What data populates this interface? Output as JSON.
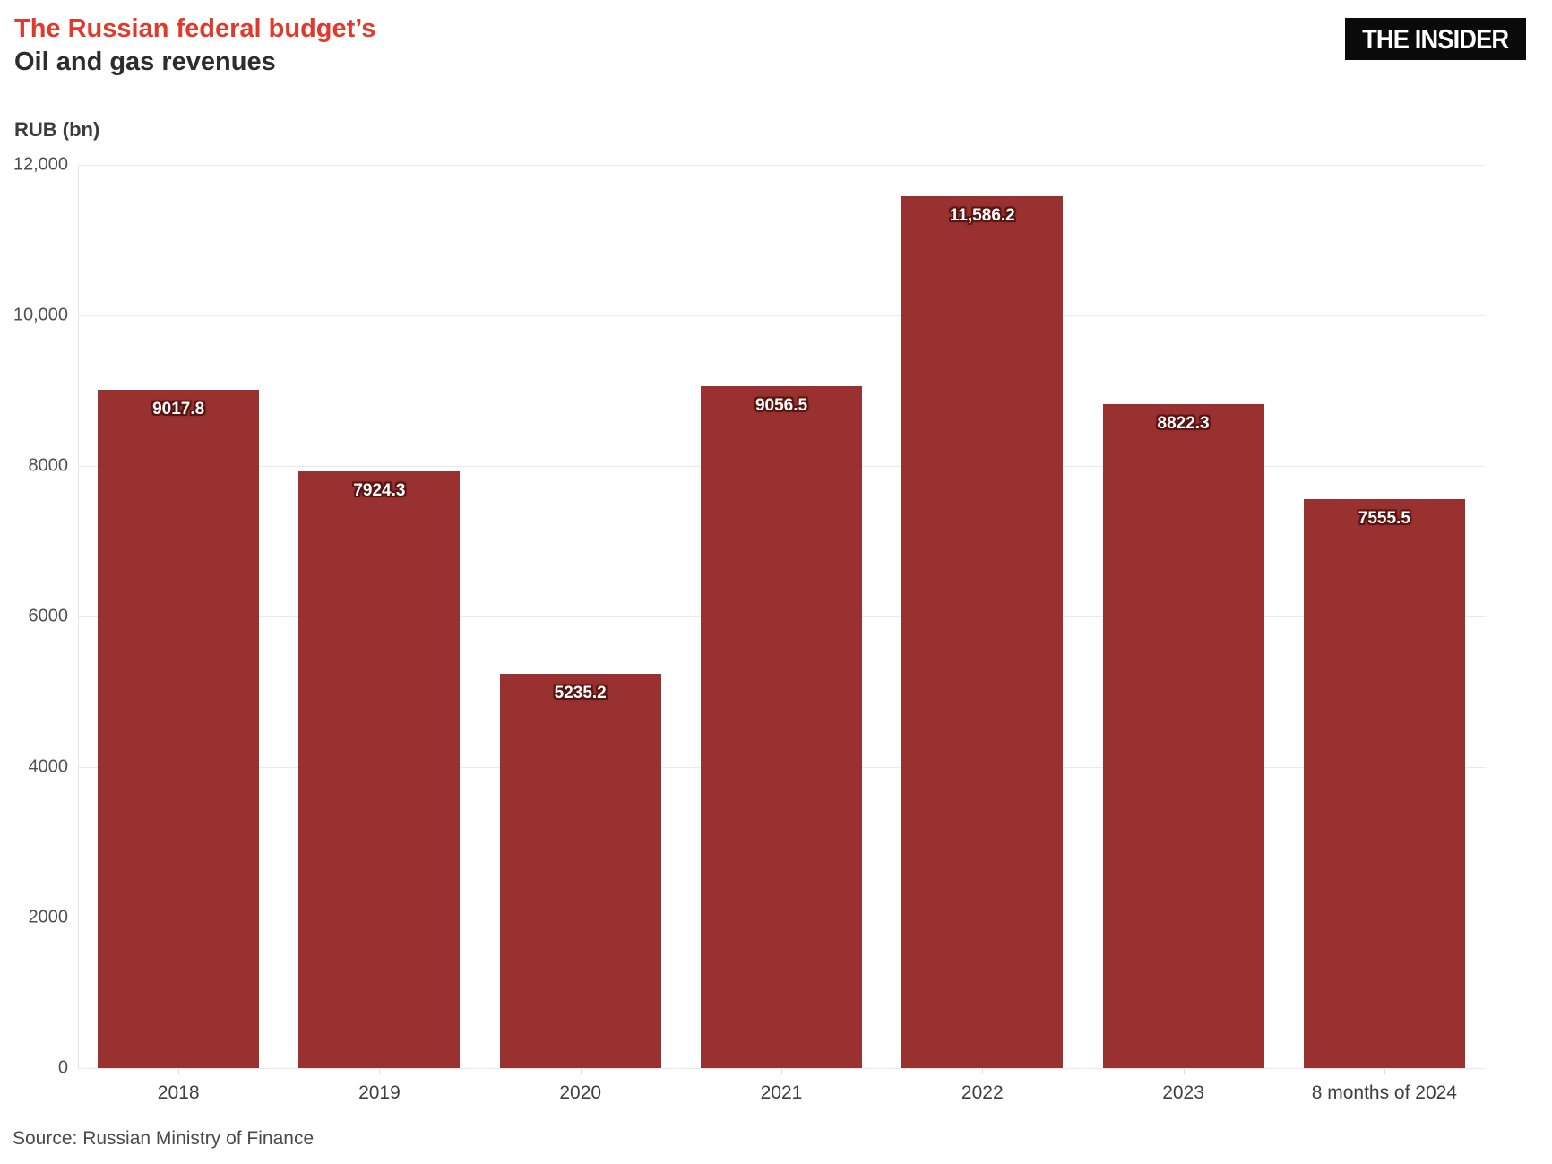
{
  "header": {
    "title_line1": "The Russian federal budget’s",
    "title_line2": "Oil and gas revenues",
    "logo_text": "THE INSIDER"
  },
  "chart_data": {
    "type": "bar",
    "title": "The Russian federal budget's Oil and gas revenues",
    "ylabel": "RUB (bn)",
    "xlabel": "",
    "categories": [
      "2018",
      "2019",
      "2020",
      "2021",
      "2022",
      "2023",
      "8 months of 2024"
    ],
    "values": [
      9017.8,
      7924.3,
      5235.2,
      9056.5,
      11586.2,
      8822.3,
      7555.5
    ],
    "value_labels": [
      "9017.8",
      "7924.3",
      "5235.2",
      "9056.5",
      "11,586.2",
      "8822.3",
      "7555.5"
    ],
    "ylim": [
      0,
      12000
    ],
    "yticks": [
      0,
      2000,
      4000,
      6000,
      8000,
      10000,
      12000
    ],
    "ytick_labels": [
      "0",
      "2000",
      "4000",
      "6000",
      "8000",
      "10,000",
      "12,000"
    ],
    "grid": true,
    "legend": false,
    "bar_color": "#993130"
  },
  "colors": {
    "title_accent": "#e03a2d",
    "title_dark": "#2d2d2d",
    "bar": "#993130",
    "bar_label_outline": "#5a1511",
    "grid": "#e9e9e9",
    "logo_bg": "#0a0a0a",
    "logo_text": "#ffffff",
    "tick_text": "#4f4f4f"
  },
  "footer": {
    "source_text": "Source: Russian Ministry of Finance"
  }
}
